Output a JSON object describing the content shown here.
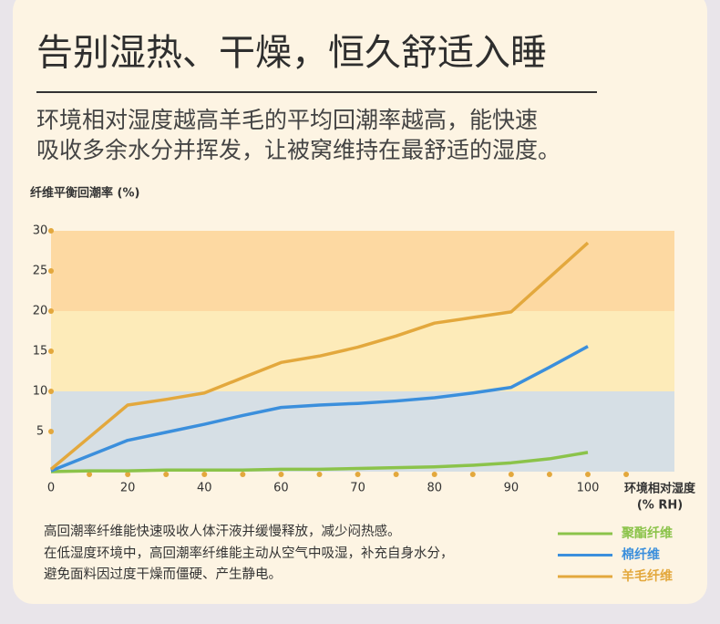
{
  "chart_data": {
    "type": "line",
    "title": "告别湿热、干燥，恒久舒适入睡",
    "subtitle": [
      "环境相对湿度越高羊毛的平均回潮率越高，能快速",
      "吸收多余水分并挥发，让被窝维持在最舒适的湿度。"
    ],
    "y_label": "纤维平衡回潮率 (%)",
    "x_label": [
      "环境相对湿度",
      "(% RH)"
    ],
    "categories": [
      0,
      null,
      20,
      null,
      40,
      null,
      60,
      null,
      70,
      null,
      80,
      null,
      90,
      null,
      100,
      null
    ],
    "ylim": [
      0,
      30
    ],
    "yticks": [
      5,
      10,
      15,
      20,
      25,
      30
    ],
    "bands": [
      {
        "from": 0,
        "to": 10,
        "color": "#d6dfe5"
      },
      {
        "from": 10,
        "to": 20,
        "color": "#fdebb9"
      },
      {
        "from": 20,
        "to": 30,
        "color": "#fdd9a2"
      }
    ],
    "series": [
      {
        "name": "聚酯纤维",
        "color": "#8bc34a",
        "values": [
          0.0,
          0.1,
          0.1,
          0.2,
          0.2,
          0.2,
          0.3,
          0.3,
          0.4,
          0.5,
          0.6,
          0.8,
          1.1,
          1.6,
          2.4,
          null
        ]
      },
      {
        "name": "棉纤维",
        "color": "#3b8fdc",
        "values": [
          0.1,
          2.0,
          3.9,
          4.9,
          5.9,
          7.0,
          8.0,
          8.3,
          8.5,
          8.8,
          9.2,
          9.8,
          10.5,
          13.0,
          15.6,
          null
        ]
      },
      {
        "name": "羊毛纤维",
        "color": "#e3a83d",
        "values": [
          0.3,
          4.3,
          8.3,
          9.0,
          9.8,
          11.7,
          13.6,
          14.4,
          15.5,
          16.9,
          18.5,
          19.2,
          19.9,
          24.2,
          28.5,
          null
        ]
      }
    ],
    "notes": [
      "高回潮率纤维能快速吸收人体汗液并缓慢释放，减少闷热感。",
      "在低湿度环境中，高回潮率纤维能主动从空气中吸湿，补充自身水分，",
      "避免面料因过度干燥而僵硬、产生静电。"
    ]
  }
}
